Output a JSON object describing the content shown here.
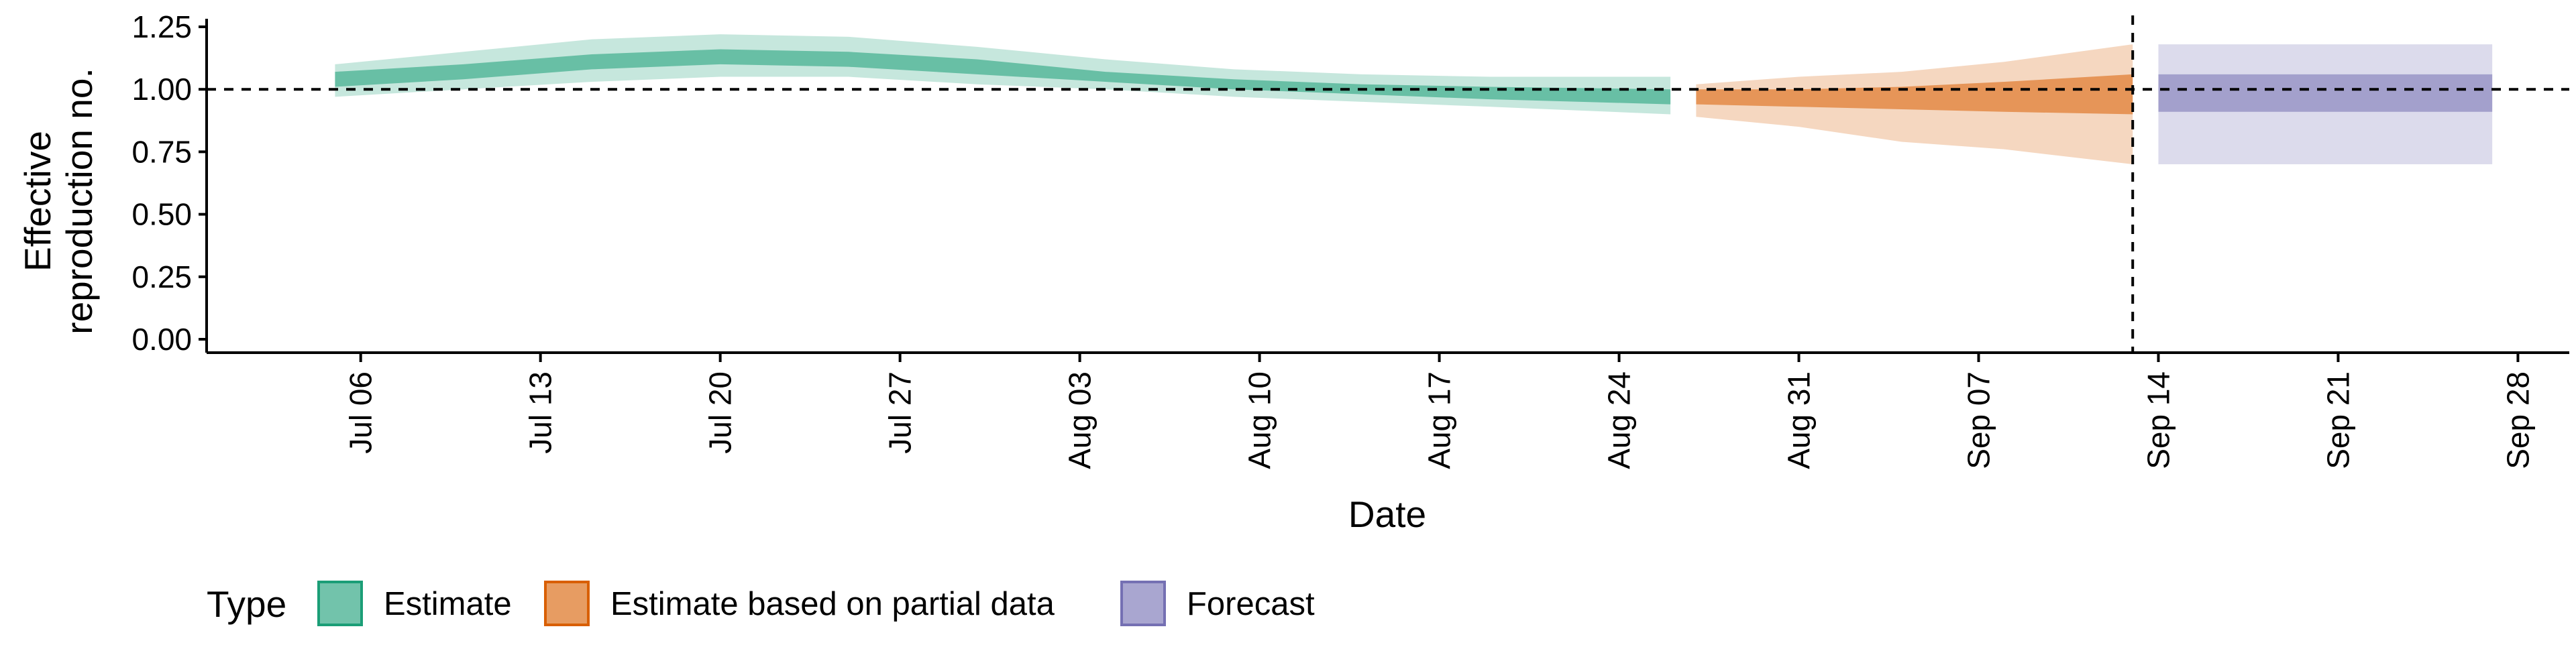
{
  "chart_data": {
    "type": "area",
    "title": "",
    "xlabel": "Date",
    "ylabel": [
      "Effective",
      "reproduction no."
    ],
    "x_ticks": [
      "Jul 06",
      "Jul 13",
      "Jul 20",
      "Jul 27",
      "Aug 03",
      "Aug 10",
      "Aug 17",
      "Aug 24",
      "Aug 31",
      "Sep 07",
      "Sep 14",
      "Sep 21",
      "Sep 28"
    ],
    "y_ticks": [
      "0.00",
      "0.25",
      "0.50",
      "0.75",
      "1.00",
      "1.25"
    ],
    "ylim": [
      0,
      1.25
    ],
    "xlim": [
      "2020-06-30",
      "2020-09-30"
    ],
    "hline": 1.0,
    "vline": "2020-09-13",
    "grid": false,
    "legend_title": "Type",
    "legend_position": "bottom-left",
    "series": [
      {
        "name": "Estimate",
        "color": "#1b9e77",
        "x": [
          "2020-07-05",
          "2020-07-10",
          "2020-07-15",
          "2020-07-20",
          "2020-07-25",
          "2020-07-30",
          "2020-08-04",
          "2020-08-09",
          "2020-08-14",
          "2020-08-19",
          "2020-08-26"
        ],
        "median": [
          1.04,
          1.07,
          1.11,
          1.13,
          1.12,
          1.09,
          1.05,
          1.02,
          1.0,
          0.99,
          0.97
        ],
        "lower_50": [
          1.01,
          1.04,
          1.08,
          1.1,
          1.09,
          1.06,
          1.03,
          1.0,
          0.98,
          0.96,
          0.94
        ],
        "upper_50": [
          1.07,
          1.1,
          1.14,
          1.16,
          1.15,
          1.12,
          1.07,
          1.04,
          1.02,
          1.01,
          1.0
        ],
        "lower_90": [
          0.97,
          1.0,
          1.03,
          1.05,
          1.05,
          1.02,
          1.0,
          0.97,
          0.95,
          0.93,
          0.9
        ],
        "upper_90": [
          1.1,
          1.15,
          1.2,
          1.22,
          1.21,
          1.17,
          1.12,
          1.08,
          1.06,
          1.05,
          1.05
        ]
      },
      {
        "name": "Estimate based on partial data",
        "color": "#d95f02",
        "x": [
          "2020-08-27",
          "2020-08-31",
          "2020-09-04",
          "2020-09-08",
          "2020-09-13"
        ],
        "median": [
          0.97,
          0.96,
          0.95,
          0.94,
          0.93
        ],
        "lower_50": [
          0.94,
          0.93,
          0.92,
          0.91,
          0.9
        ],
        "upper_50": [
          1.0,
          1.0,
          1.01,
          1.03,
          1.06
        ],
        "lower_90": [
          0.89,
          0.85,
          0.79,
          0.76,
          0.7
        ],
        "upper_90": [
          1.02,
          1.05,
          1.07,
          1.11,
          1.18
        ]
      },
      {
        "name": "Forecast",
        "color": "#7570b3",
        "x": [
          "2020-09-14",
          "2020-09-27"
        ],
        "median": [
          0.98,
          0.98
        ],
        "lower_50": [
          0.91,
          0.91
        ],
        "upper_50": [
          1.06,
          1.06
        ],
        "lower_90": [
          0.7,
          0.7
        ],
        "upper_90": [
          1.18,
          1.18
        ]
      }
    ]
  }
}
